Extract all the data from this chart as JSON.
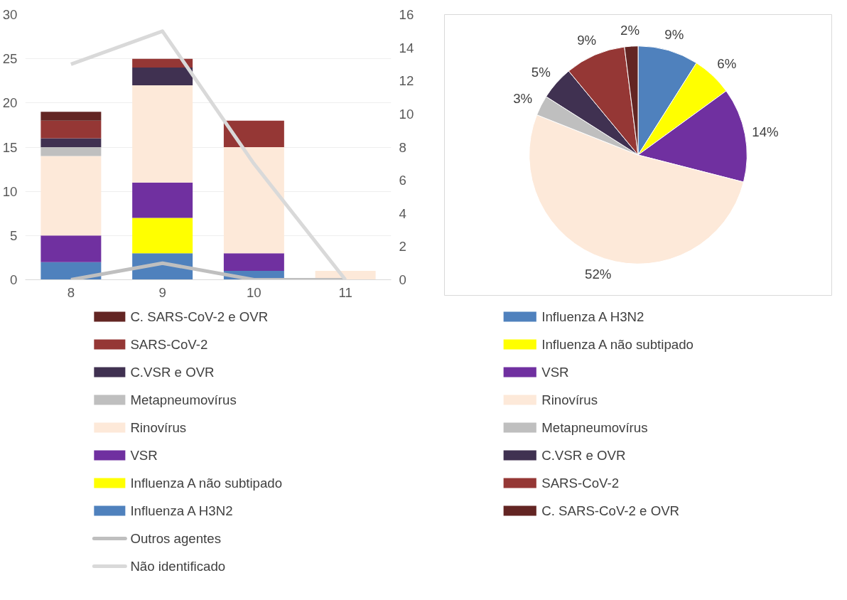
{
  "chart_data": [
    {
      "type": "bar",
      "stacked": true,
      "categories": [
        "8",
        "9",
        "10",
        "11"
      ],
      "series": [
        {
          "name": "Influenza A H3N2",
          "color": "#4f81bd",
          "values": [
            2,
            3,
            1,
            0
          ]
        },
        {
          "name": "Influenza A não subtipado",
          "color": "#ffff00",
          "values": [
            0,
            4,
            0,
            0
          ]
        },
        {
          "name": "VSR",
          "color": "#7030a0",
          "values": [
            3,
            4,
            2,
            0
          ]
        },
        {
          "name": "Rinovírus",
          "color": "#fde9d9",
          "values": [
            9,
            11,
            12,
            1
          ]
        },
        {
          "name": "Metapneumovírus",
          "color": "#bfbfbf",
          "values": [
            1,
            0,
            0,
            0
          ]
        },
        {
          "name": "C.VSR e OVR",
          "color": "#403151",
          "values": [
            1,
            2,
            0,
            0
          ]
        },
        {
          "name": "SARS-CoV-2",
          "color": "#953735",
          "values": [
            2,
            1,
            3,
            0
          ]
        },
        {
          "name": "C. SARS-CoV-2 e OVR",
          "color": "#632523",
          "values": [
            1,
            0,
            0,
            0
          ]
        },
        {
          "name": "Outros agentes",
          "type": "line",
          "axis": "y2",
          "color": "#bfbfbf",
          "values": [
            0,
            1,
            0,
            0
          ]
        },
        {
          "name": "Não identificado",
          "type": "line",
          "axis": "y2",
          "color": "#d9d9d9",
          "values": [
            13,
            15,
            7,
            0
          ]
        }
      ],
      "ylim": [
        0,
        30
      ],
      "yticks": [
        0,
        5,
        10,
        15,
        20,
        25,
        30
      ],
      "y2lim": [
        0,
        16
      ],
      "y2ticks": [
        0,
        2,
        4,
        6,
        8,
        10,
        12,
        14,
        16
      ],
      "grid": "y",
      "legend": "bottom"
    },
    {
      "type": "pie",
      "categories": [
        "Influenza A H3N2",
        "Influenza A não subtipado",
        "VSR",
        "Rinovírus",
        "Metapneumovírus",
        "C.VSR e OVR",
        "SARS-CoV-2",
        "C. SARS-CoV-2 e OVR"
      ],
      "values": [
        9,
        6,
        14,
        52,
        3,
        5,
        9,
        2
      ],
      "value_labels": [
        "9%",
        "6%",
        "14%",
        "52%",
        "3%",
        "5%",
        "9%",
        "2%"
      ],
      "colors": [
        "#4f81bd",
        "#ffff00",
        "#7030a0",
        "#fde9d9",
        "#bfbfbf",
        "#403151",
        "#953735",
        "#632523"
      ],
      "legend": "bottom"
    }
  ]
}
